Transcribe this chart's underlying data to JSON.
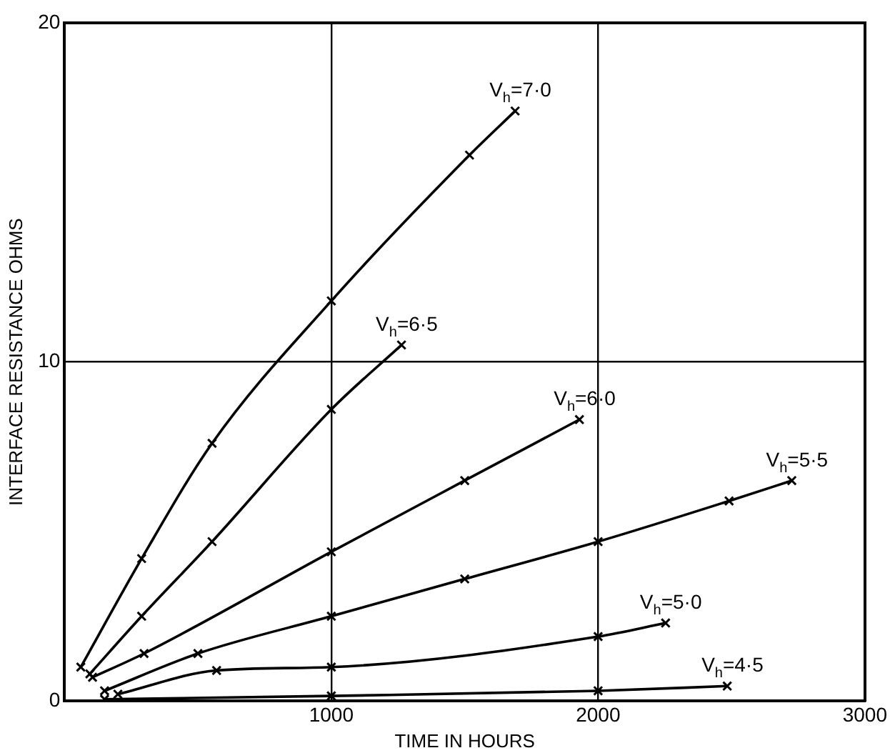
{
  "chart_data": {
    "type": "line",
    "xlabel": "TIME IN HOURS",
    "ylabel": "INTERFACE RESISTANCE OHMS",
    "xlim": [
      0,
      3000
    ],
    "ylim": [
      0,
      20
    ],
    "xticks": [
      1000,
      2000,
      3000
    ],
    "yticks": [
      0,
      10,
      20
    ],
    "grid": true,
    "legend": false,
    "marker": "cross",
    "line_style": "solid",
    "series": [
      {
        "name": "V$_{h}$=7·0",
        "color": "#000000",
        "x": [
          61,
          289,
          553,
          1000,
          1518,
          1689
        ],
        "values": [
          1.0,
          4.2,
          7.6,
          11.8,
          16.1,
          17.4
        ]
      },
      {
        "name": "V$_{h}$=6·5",
        "color": "#000000",
        "x": [
          95,
          289,
          553,
          1000,
          1263
        ],
        "values": [
          0.8,
          2.5,
          4.7,
          8.6,
          10.5
        ]
      },
      {
        "name": "V$_{h}$=6·0",
        "color": "#000000",
        "x": [
          105,
          298,
          1000,
          1500,
          1930
        ],
        "values": [
          0.7,
          1.4,
          4.4,
          6.5,
          8.3
        ]
      },
      {
        "name": "V$_{h}$=5·5",
        "color": "#000000",
        "x": [
          150,
          500,
          1000,
          1500,
          2000,
          2491,
          2726
        ],
        "values": [
          0.3,
          1.4,
          2.5,
          3.6,
          4.7,
          5.9,
          6.5
        ]
      },
      {
        "name": "V$_{h}$=5·0",
        "color": "#000000",
        "x": [
          200,
          570,
          1000,
          2000,
          2253
        ],
        "values": [
          0.2,
          0.9,
          1.0,
          1.9,
          2.3
        ]
      },
      {
        "name": "V$_{h}$=4·5",
        "color": "#000000",
        "x": [
          150,
          1000,
          2000,
          2484
        ],
        "values": [
          0.05,
          0.15,
          0.3,
          0.44
        ]
      }
    ]
  }
}
